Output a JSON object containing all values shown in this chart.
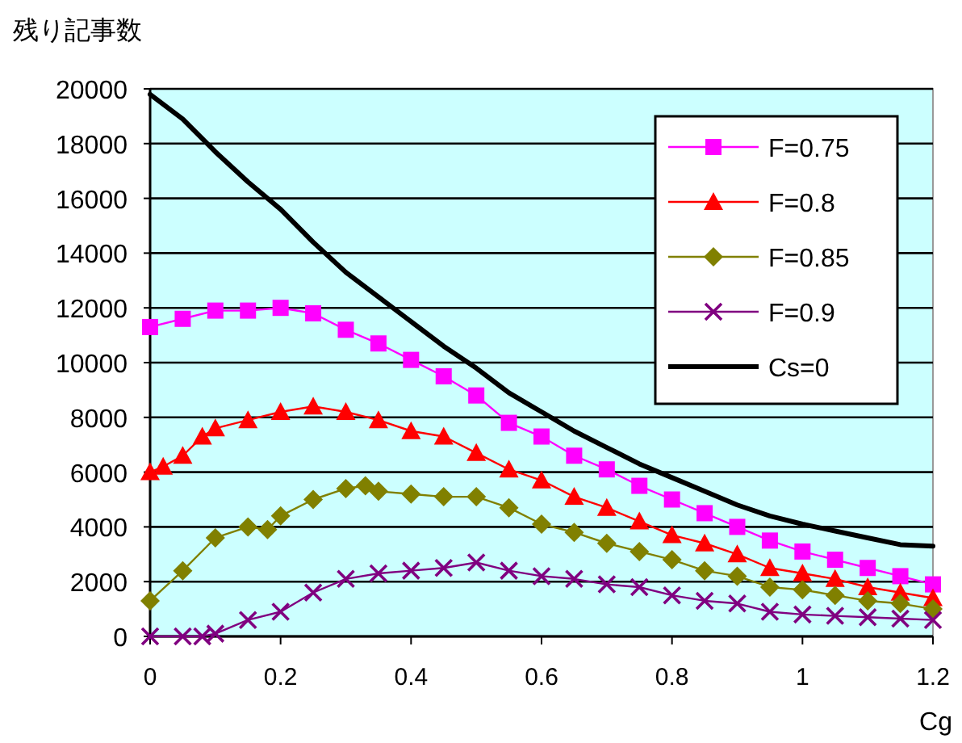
{
  "chart_data": {
    "type": "line",
    "ylabel": "残り記事数",
    "xlabel": "Cg",
    "xlim": [
      0,
      1.2
    ],
    "xticks": [
      0,
      0.2,
      0.4,
      0.6,
      0.8,
      1,
      1.2
    ],
    "ylim": [
      0,
      20000
    ],
    "yticks": [
      0,
      2000,
      4000,
      6000,
      8000,
      10000,
      12000,
      14000,
      16000,
      18000,
      20000
    ],
    "grid": "y",
    "legend": "top right",
    "line_style": "solid",
    "series": [
      {
        "name": "F=0.75",
        "color": "#ff00ff",
        "marker": "square",
        "x": [
          0,
          0.05,
          0.1,
          0.15,
          0.2,
          0.25,
          0.3,
          0.35,
          0.4,
          0.45,
          0.5,
          0.55,
          0.6,
          0.65,
          0.7,
          0.75,
          0.8,
          0.85,
          0.9,
          0.95,
          1.0,
          1.05,
          1.1,
          1.15,
          1.2
        ],
        "values": [
          11300,
          11600,
          11900,
          11900,
          12000,
          11800,
          11200,
          10700,
          10100,
          9500,
          8800,
          7800,
          7300,
          6600,
          6100,
          5500,
          5000,
          4500,
          4000,
          3500,
          3100,
          2800,
          2500,
          2200,
          1900
        ]
      },
      {
        "name": "F=0.8",
        "color": "#ff0000",
        "marker": "triangle",
        "x": [
          0,
          0.02,
          0.05,
          0.08,
          0.1,
          0.15,
          0.2,
          0.25,
          0.3,
          0.35,
          0.4,
          0.45,
          0.5,
          0.55,
          0.6,
          0.65,
          0.7,
          0.75,
          0.8,
          0.85,
          0.9,
          0.95,
          1.0,
          1.05,
          1.1,
          1.15,
          1.2
        ],
        "values": [
          6000,
          6200,
          6600,
          7300,
          7600,
          7900,
          8200,
          8400,
          8200,
          7900,
          7500,
          7300,
          6700,
          6100,
          5700,
          5100,
          4700,
          4200,
          3700,
          3400,
          3000,
          2500,
          2300,
          2100,
          1800,
          1600,
          1400
        ]
      },
      {
        "name": "F=0.85",
        "color": "#808000",
        "marker": "diamond",
        "x": [
          0,
          0.05,
          0.1,
          0.15,
          0.18,
          0.2,
          0.25,
          0.3,
          0.33,
          0.35,
          0.4,
          0.45,
          0.5,
          0.55,
          0.6,
          0.65,
          0.7,
          0.75,
          0.8,
          0.85,
          0.9,
          0.95,
          1.0,
          1.05,
          1.1,
          1.15,
          1.2
        ],
        "values": [
          1300,
          2400,
          3600,
          4000,
          3900,
          4400,
          5000,
          5400,
          5500,
          5300,
          5200,
          5100,
          5100,
          4700,
          4100,
          3800,
          3400,
          3100,
          2800,
          2400,
          2200,
          1800,
          1700,
          1500,
          1300,
          1200,
          1000
        ]
      },
      {
        "name": "F=0.9",
        "color": "#800080",
        "marker": "cross",
        "x": [
          0,
          0.05,
          0.08,
          0.1,
          0.15,
          0.2,
          0.25,
          0.3,
          0.35,
          0.4,
          0.45,
          0.5,
          0.55,
          0.6,
          0.65,
          0.7,
          0.75,
          0.8,
          0.85,
          0.9,
          0.95,
          1.0,
          1.05,
          1.1,
          1.15,
          1.2
        ],
        "values": [
          0,
          0,
          0,
          100,
          600,
          900,
          1600,
          2100,
          2300,
          2400,
          2500,
          2700,
          2400,
          2200,
          2100,
          1900,
          1800,
          1500,
          1300,
          1200,
          900,
          800,
          750,
          700,
          650,
          600
        ]
      },
      {
        "name": "Cs=0",
        "color": "#000000",
        "marker": "none",
        "x": [
          0,
          0.05,
          0.1,
          0.15,
          0.2,
          0.25,
          0.3,
          0.35,
          0.4,
          0.45,
          0.5,
          0.55,
          0.6,
          0.65,
          0.7,
          0.75,
          0.8,
          0.85,
          0.9,
          0.95,
          1.0,
          1.05,
          1.1,
          1.15,
          1.2
        ],
        "values": [
          19800,
          18900,
          17700,
          16600,
          15600,
          14400,
          13300,
          12400,
          11500,
          10600,
          9800,
          8900,
          8200,
          7500,
          6900,
          6300,
          5800,
          5300,
          4800,
          4400,
          4100,
          3850,
          3600,
          3350,
          3300
        ]
      }
    ]
  }
}
